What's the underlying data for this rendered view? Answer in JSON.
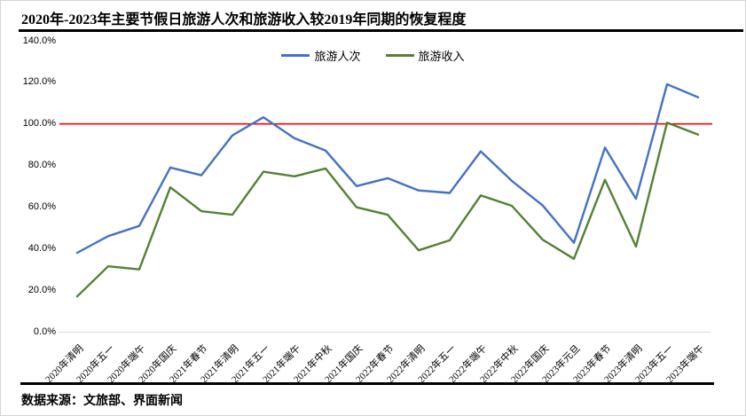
{
  "title": "2020年-2023年主要节假日旅游人次和旅游收入较2019年同期的恢复程度",
  "footer": {
    "source_label": "数据来源：文旅部、界面新闻"
  },
  "colors": {
    "tourist_trips": "#4472C4",
    "tourism_revenue": "#538135",
    "reference_line": "#FF0000",
    "axis_line": "#D9D9D9"
  },
  "legend": [
    {
      "label": "旅游人次",
      "color": "#4472C4"
    },
    {
      "label": "旅游收入",
      "color": "#538135"
    }
  ],
  "y_axis": {
    "ticks": [
      {
        "label": "140.0%",
        "value": 140
      },
      {
        "label": "120.0%",
        "value": 120
      },
      {
        "label": "100.0%",
        "value": 100
      },
      {
        "label": "80.0%",
        "value": 80
      },
      {
        "label": "60.0%",
        "value": 60
      },
      {
        "label": "40.0%",
        "value": 40
      },
      {
        "label": "20.0%",
        "value": 20
      },
      {
        "label": "0.0%",
        "value": 0
      }
    ]
  },
  "chart_data": {
    "type": "line",
    "title": "2020年-2023年主要节假日旅游人次和旅游收入较2019年同期的恢复程度",
    "categories": [
      "2020年清明",
      "2020年五一",
      "2020年端午",
      "2020年国庆",
      "2021年春节",
      "2021年清明",
      "2021年五一",
      "2021年端午",
      "2021年中秋",
      "2021年国庆",
      "2022年春节",
      "2022年清明",
      "2022年五一",
      "2022年端午",
      "2022年中秋",
      "2022年国庆",
      "2023年元旦",
      "2023年春节",
      "2023年清明",
      "2023年五一",
      "2023年端午"
    ],
    "series": [
      {
        "name": "旅游人次",
        "color": "#4472C4",
        "values": [
          38.0,
          46.0,
          50.9,
          79.0,
          75.3,
          94.5,
          103.2,
          93.1,
          87.2,
          70.1,
          73.9,
          68.0,
          66.8,
          86.8,
          72.6,
          60.7,
          42.8,
          88.6,
          64.0,
          119.1,
          112.8
        ]
      },
      {
        "name": "旅游收入",
        "color": "#538135",
        "values": [
          17.0,
          31.5,
          30.0,
          69.5,
          58.0,
          56.3,
          77.0,
          74.8,
          78.6,
          59.9,
          56.3,
          39.2,
          44.0,
          65.6,
          60.6,
          44.2,
          35.1,
          73.1,
          41.0,
          100.6,
          94.9
        ]
      }
    ],
    "reference_line": {
      "value": 100,
      "color": "#FF0000"
    },
    "ylim": [
      0,
      140
    ],
    "xlabel": "",
    "ylabel": "",
    "grid": false,
    "legend_position": "top-center"
  }
}
